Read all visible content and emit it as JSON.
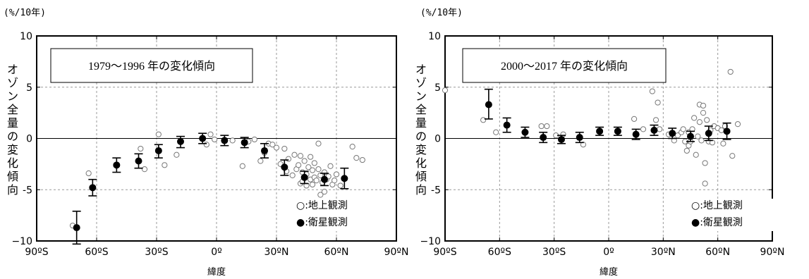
{
  "chart_data": [
    {
      "type": "scatter",
      "unit_label": "(%/10年)",
      "ylabel": "オゾン全量の変化傾向",
      "xlabel": "緯度",
      "title": "1979～1996 年の変化傾向",
      "xlim": [
        -90,
        90
      ],
      "ylim": [
        -10,
        10
      ],
      "x_ticks": [
        "90ºS",
        "60ºS",
        "30ºS",
        "0º",
        "30ºN",
        "60ºN",
        "90ºN"
      ],
      "y_ticks": [
        "10",
        "5",
        "0",
        "-5",
        "−10"
      ],
      "grid": true,
      "legend_position": "bottom-right",
      "legend": [
        "○:地上観測",
        "●:衛星観測"
      ],
      "series": [
        {
          "name": "地上観測",
          "marker": "open-circle",
          "points": [
            [
              -72,
              -8.5
            ],
            [
              -64,
              -3.4
            ],
            [
              -38,
              -1.0
            ],
            [
              -36,
              -3.0
            ],
            [
              -29,
              0.4
            ],
            [
              -26,
              -2.6
            ],
            [
              -20,
              -1.6
            ],
            [
              -5,
              -0.6
            ],
            [
              -3,
              0.4
            ],
            [
              -1,
              -0.1
            ],
            [
              8,
              -0.2
            ],
            [
              13,
              -2.7
            ],
            [
              16,
              -0.3
            ],
            [
              19,
              -0.1
            ],
            [
              22,
              -2.2
            ],
            [
              24,
              -1.4
            ],
            [
              26,
              -0.5
            ],
            [
              28,
              -0.6
            ],
            [
              30,
              -0.9
            ],
            [
              32,
              -2.5
            ],
            [
              34,
              -1.0
            ],
            [
              35,
              -3.2
            ],
            [
              36,
              -2.0
            ],
            [
              38,
              -3.6
            ],
            [
              39,
              -1.6
            ],
            [
              40,
              -3.0
            ],
            [
              41,
              -2.6
            ],
            [
              42,
              -4.4
            ],
            [
              42,
              -1.7
            ],
            [
              43,
              -3.3
            ],
            [
              43,
              -4.2
            ],
            [
              44,
              -2.2
            ],
            [
              45,
              -3.5
            ],
            [
              45,
              -4.6
            ],
            [
              46,
              -2.8
            ],
            [
              47,
              -1.8
            ],
            [
              47,
              -4.0
            ],
            [
              48,
              -3.1
            ],
            [
              48,
              -4.5
            ],
            [
              49,
              -3.8
            ],
            [
              49,
              -2.4
            ],
            [
              50,
              -4.1
            ],
            [
              51,
              -0.5
            ],
            [
              51,
              -3.0
            ],
            [
              52,
              -3.6
            ],
            [
              52,
              -5.5
            ],
            [
              53,
              -4.3
            ],
            [
              54,
              -3.3
            ],
            [
              54,
              -5.2
            ],
            [
              55,
              -4.0
            ],
            [
              56,
              -3.7
            ],
            [
              57,
              -2.7
            ],
            [
              58,
              -4.5
            ],
            [
              59,
              -4.1
            ],
            [
              60,
              -3.5
            ],
            [
              62,
              -4.6
            ],
            [
              68,
              -0.8
            ],
            [
              70,
              -1.9
            ],
            [
              73,
              -2.1
            ]
          ]
        },
        {
          "name": "衛星観測",
          "marker": "filled-circle",
          "points": [
            [
              -70,
              -8.7,
              -10.3,
              -7.1
            ],
            [
              -62,
              -4.8,
              -5.6,
              -4.0
            ],
            [
              -50,
              -2.6,
              -3.3,
              -1.9
            ],
            [
              -39,
              -2.2,
              -2.9,
              -1.5
            ],
            [
              -29,
              -1.2,
              -1.9,
              -0.6
            ],
            [
              -18,
              -0.3,
              -0.9,
              0.2
            ],
            [
              -7,
              0.0,
              -0.5,
              0.5
            ],
            [
              4,
              -0.2,
              -0.7,
              0.3
            ],
            [
              14,
              -0.4,
              -0.9,
              0.1
            ],
            [
              24,
              -1.2,
              -1.9,
              -0.5
            ],
            [
              34,
              -2.8,
              -3.6,
              -2.1
            ],
            [
              44,
              -3.8,
              -4.4,
              -3.2
            ],
            [
              54,
              -4.0,
              -4.6,
              -3.4
            ],
            [
              64,
              -3.9,
              -4.9,
              -2.9
            ]
          ]
        }
      ]
    },
    {
      "type": "scatter",
      "unit_label": "(%/10年)",
      "ylabel": "オゾン全量の変化傾向",
      "xlabel": "緯度",
      "title": "2000～2017 年の変化傾向",
      "xlim": [
        -90,
        90
      ],
      "ylim": [
        -10,
        10
      ],
      "x_ticks": [
        "90ºS",
        "60ºS",
        "30ºS",
        "0º",
        "30ºN",
        "60ºN",
        "90ºN"
      ],
      "y_ticks": [
        "10",
        "5",
        "0",
        "-5",
        "−10"
      ],
      "grid": true,
      "legend_position": "bottom-right",
      "legend": [
        "○:地上観測",
        "●:衛星観測"
      ],
      "series": [
        {
          "name": "地上観測",
          "marker": "open-circle",
          "points": [
            [
              -90,
              4.7
            ],
            [
              -69,
              1.8
            ],
            [
              -62,
              0.6
            ],
            [
              -37,
              1.2
            ],
            [
              -34,
              1.2
            ],
            [
              -29,
              0.3
            ],
            [
              -25,
              0.4
            ],
            [
              -14,
              -0.6
            ],
            [
              14,
              1.9
            ],
            [
              19,
              0.9
            ],
            [
              24,
              4.6
            ],
            [
              26,
              1.8
            ],
            [
              27,
              3.5
            ],
            [
              28,
              0.9
            ],
            [
              33,
              0.4
            ],
            [
              36,
              -0.2
            ],
            [
              38,
              0.3
            ],
            [
              40,
              0.6
            ],
            [
              41,
              0.9
            ],
            [
              42,
              -0.3
            ],
            [
              43,
              -1.2
            ],
            [
              44,
              0.6
            ],
            [
              44,
              -0.7
            ],
            [
              45,
              -0.3
            ],
            [
              46,
              0.9
            ],
            [
              47,
              2.0
            ],
            [
              48,
              -1.6
            ],
            [
              49,
              0.2
            ],
            [
              50,
              1.6
            ],
            [
              50,
              3.3
            ],
            [
              51,
              -0.2
            ],
            [
              52,
              3.2
            ],
            [
              52,
              2.5
            ],
            [
              53,
              -2.4
            ],
            [
              53,
              -4.4
            ],
            [
              54,
              1.8
            ],
            [
              55,
              -0.3
            ],
            [
              56,
              0.8
            ],
            [
              57,
              -0.4
            ],
            [
              58,
              1.2
            ],
            [
              60,
              1.0
            ],
            [
              62,
              0.8
            ],
            [
              63,
              -0.5
            ],
            [
              64,
              1.2
            ],
            [
              67,
              6.5
            ],
            [
              68,
              -1.7
            ],
            [
              71,
              1.4
            ]
          ]
        },
        {
          "name": "衛星観測",
          "marker": "filled-circle",
          "points": [
            [
              -66,
              3.3,
              1.9,
              4.8
            ],
            [
              -56,
              1.3,
              0.6,
              2.0
            ],
            [
              -46,
              0.6,
              0.1,
              1.1
            ],
            [
              -36,
              0.1,
              -0.4,
              0.6
            ],
            [
              -26,
              -0.1,
              -0.5,
              0.3
            ],
            [
              -16,
              0.1,
              -0.4,
              0.6
            ],
            [
              -5,
              0.7,
              0.3,
              1.1
            ],
            [
              5,
              0.7,
              0.3,
              1.1
            ],
            [
              15,
              0.4,
              -0.1,
              0.9
            ],
            [
              25,
              0.8,
              0.3,
              1.3
            ],
            [
              35,
              0.5,
              0.0,
              1.0
            ],
            [
              45,
              0.2,
              -0.3,
              0.7
            ],
            [
              55,
              0.5,
              -0.2,
              1.2
            ],
            [
              65,
              0.7,
              -0.1,
              1.5
            ]
          ]
        }
      ]
    }
  ]
}
